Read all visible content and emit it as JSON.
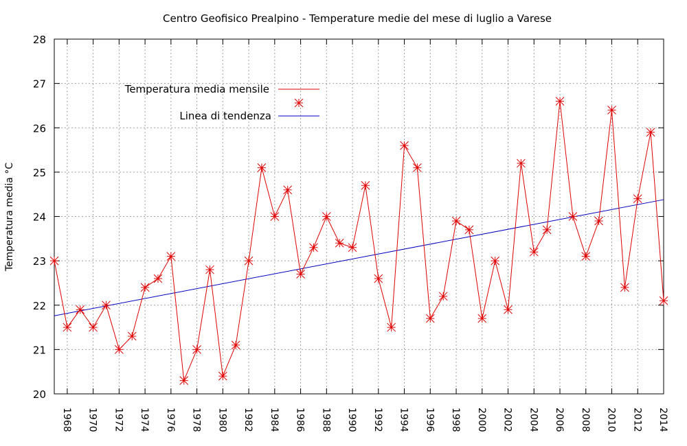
{
  "chart_data": {
    "type": "line",
    "title": "Centro Geofisico Prealpino - Temperature medie del mese di luglio a Varese",
    "xlabel": "",
    "ylabel": "Temperatura media °C",
    "xlim": [
      1967,
      2014
    ],
    "ylim": [
      20,
      28
    ],
    "yticks": [
      20,
      21,
      22,
      23,
      24,
      25,
      26,
      27,
      28
    ],
    "xticks": [
      1968,
      1970,
      1972,
      1974,
      1976,
      1978,
      1980,
      1982,
      1984,
      1986,
      1988,
      1990,
      1992,
      1994,
      1996,
      1998,
      2000,
      2002,
      2004,
      2006,
      2008,
      2010,
      2012,
      2014
    ],
    "grid": true,
    "legend_position": "top-left",
    "series": [
      {
        "name": "Temperatura media mensile",
        "color": "#e00000",
        "marker": "asterisk",
        "x": [
          1967,
          1968,
          1969,
          1970,
          1971,
          1972,
          1973,
          1974,
          1975,
          1976,
          1977,
          1978,
          1979,
          1980,
          1981,
          1982,
          1983,
          1984,
          1985,
          1986,
          1987,
          1988,
          1989,
          1990,
          1991,
          1992,
          1993,
          1994,
          1995,
          1996,
          1997,
          1998,
          1999,
          2000,
          2001,
          2002,
          2003,
          2004,
          2005,
          2006,
          2007,
          2008,
          2009,
          2010,
          2011,
          2012,
          2013,
          2014
        ],
        "y": [
          23.0,
          21.5,
          21.9,
          21.5,
          22.0,
          21.0,
          21.3,
          22.4,
          22.6,
          23.1,
          20.3,
          21.0,
          22.8,
          20.4,
          21.1,
          23.0,
          25.1,
          24.0,
          24.6,
          22.7,
          23.3,
          24.0,
          23.4,
          23.3,
          24.7,
          22.6,
          21.5,
          25.6,
          25.1,
          21.7,
          22.2,
          23.9,
          23.7,
          21.7,
          23.0,
          21.9,
          25.2,
          23.2,
          23.7,
          26.6,
          24.0,
          23.1,
          23.9,
          26.4,
          22.4,
          24.4,
          25.9,
          22.1
        ]
      },
      {
        "name": "Linea di tendenza",
        "color": "#0000c0",
        "x": [
          1967,
          2014
        ],
        "y": [
          21.76,
          24.38
        ]
      }
    ]
  }
}
